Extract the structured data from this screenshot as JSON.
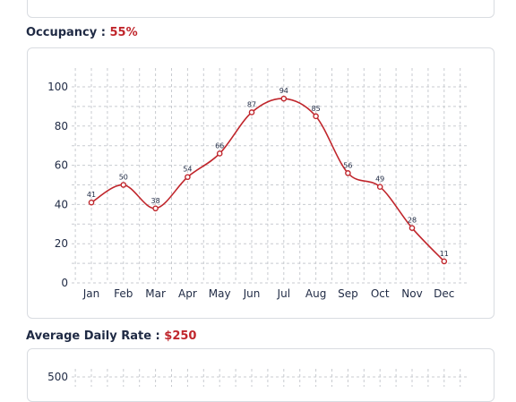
{
  "sections": {
    "occupancy": {
      "label": "Occupancy :",
      "value": "55%"
    },
    "adr": {
      "label": "Average Daily Rate :",
      "value": "$250"
    }
  },
  "colors": {
    "accent": "#c0262c",
    "line": "#c0262c",
    "grid": "#c8cbd0",
    "border": "#d9dce1"
  },
  "chart_data": [
    {
      "type": "line",
      "categories": [
        "Jan",
        "Feb",
        "Mar",
        "Apr",
        "May",
        "Jun",
        "Jul",
        "Aug",
        "Sep",
        "Oct",
        "Nov",
        "Dec"
      ],
      "series": [
        {
          "values": [
            41,
            50,
            38,
            54,
            66,
            87,
            94,
            85,
            56,
            49,
            28,
            11
          ]
        }
      ],
      "ylim": [
        0,
        100
      ],
      "yticks": [
        0,
        20,
        40,
        60,
        80,
        100
      ],
      "grid": true,
      "data_labels": true
    },
    {
      "type": "line",
      "yticks": [
        500
      ],
      "grid": true
    }
  ]
}
